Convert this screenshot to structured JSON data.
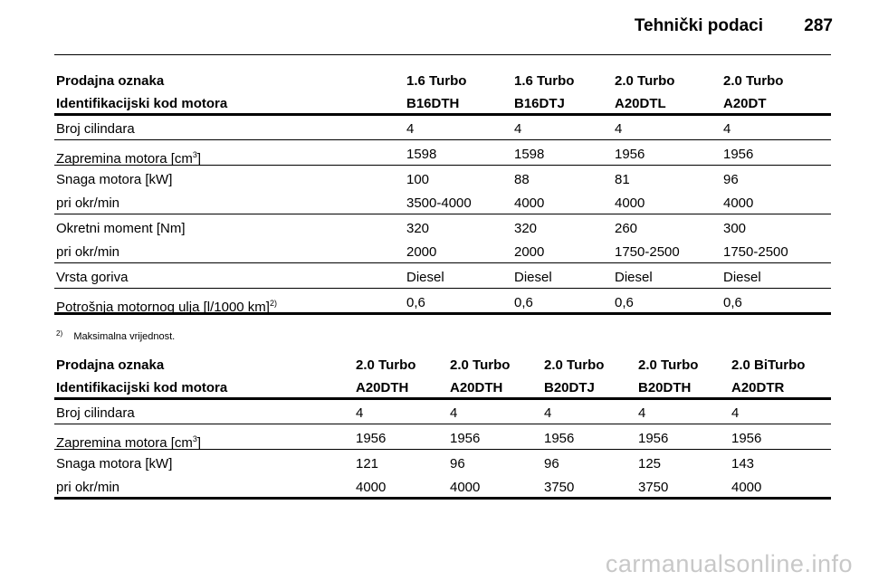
{
  "header": {
    "title": "Tehnički podaci",
    "page": "287"
  },
  "table1": {
    "header_rows": [
      [
        "Prodajna oznaka",
        "1.6 Turbo",
        "1.6 Turbo",
        "2.0 Turbo",
        "2.0 Turbo"
      ],
      [
        "Identifikacijski kod motora",
        "B16DTH",
        "B16DTJ",
        "A20DTL",
        "A20DT"
      ]
    ],
    "groups": [
      [
        {
          "label": "Broj cilindara",
          "values": [
            "4",
            "4",
            "4",
            "4"
          ]
        }
      ],
      [
        {
          "label": "Zapremina motora [cm",
          "label_sup": "3",
          "label_end": "]",
          "values": [
            "1598",
            "1598",
            "1956",
            "1956"
          ]
        }
      ],
      [
        {
          "label": "Snaga motora [kW]",
          "values": [
            "100",
            "88",
            "81",
            "96"
          ]
        },
        {
          "label": "pri okr/min",
          "values": [
            "3500-4000",
            "4000",
            "4000",
            "4000"
          ]
        }
      ],
      [
        {
          "label": "Okretni moment [Nm]",
          "values": [
            "320",
            "320",
            "260",
            "300"
          ]
        },
        {
          "label": "pri okr/min",
          "values": [
            "2000",
            "2000",
            "1750-2500",
            "1750-2500"
          ]
        }
      ],
      [
        {
          "label": "Vrsta goriva",
          "values": [
            "Diesel",
            "Diesel",
            "Diesel",
            "Diesel"
          ]
        }
      ],
      [
        {
          "label": "Potrošnja motornog ulja [l/1000 km]",
          "label_sup": "2)",
          "values": [
            "0,6",
            "0,6",
            "0,6",
            "0,6"
          ]
        }
      ]
    ]
  },
  "footnote": {
    "mark": "2)",
    "text": "Maksimalna vrijednost."
  },
  "table2": {
    "header_rows": [
      [
        "Prodajna oznaka",
        "2.0 Turbo",
        "2.0 Turbo",
        "2.0 Turbo",
        "2.0 Turbo",
        "2.0 BiTurbo"
      ],
      [
        "Identifikacijski kod motora",
        "A20DTH",
        "A20DTH",
        "B20DTJ",
        "B20DTH",
        "A20DTR"
      ]
    ],
    "groups": [
      [
        {
          "label": "Broj cilindara",
          "values": [
            "4",
            "4",
            "4",
            "4",
            "4"
          ]
        }
      ],
      [
        {
          "label": "Zapremina motora [cm",
          "label_sup": "3",
          "label_end": "]",
          "values": [
            "1956",
            "1956",
            "1956",
            "1956",
            "1956"
          ]
        }
      ],
      [
        {
          "label": "Snaga motora [kW]",
          "values": [
            "121",
            "96",
            "96",
            "125",
            "143"
          ]
        },
        {
          "label": "pri okr/min",
          "values": [
            "4000",
            "4000",
            "3750",
            "3750",
            "4000"
          ]
        }
      ]
    ]
  },
  "watermark": "carmanualsonline.info"
}
